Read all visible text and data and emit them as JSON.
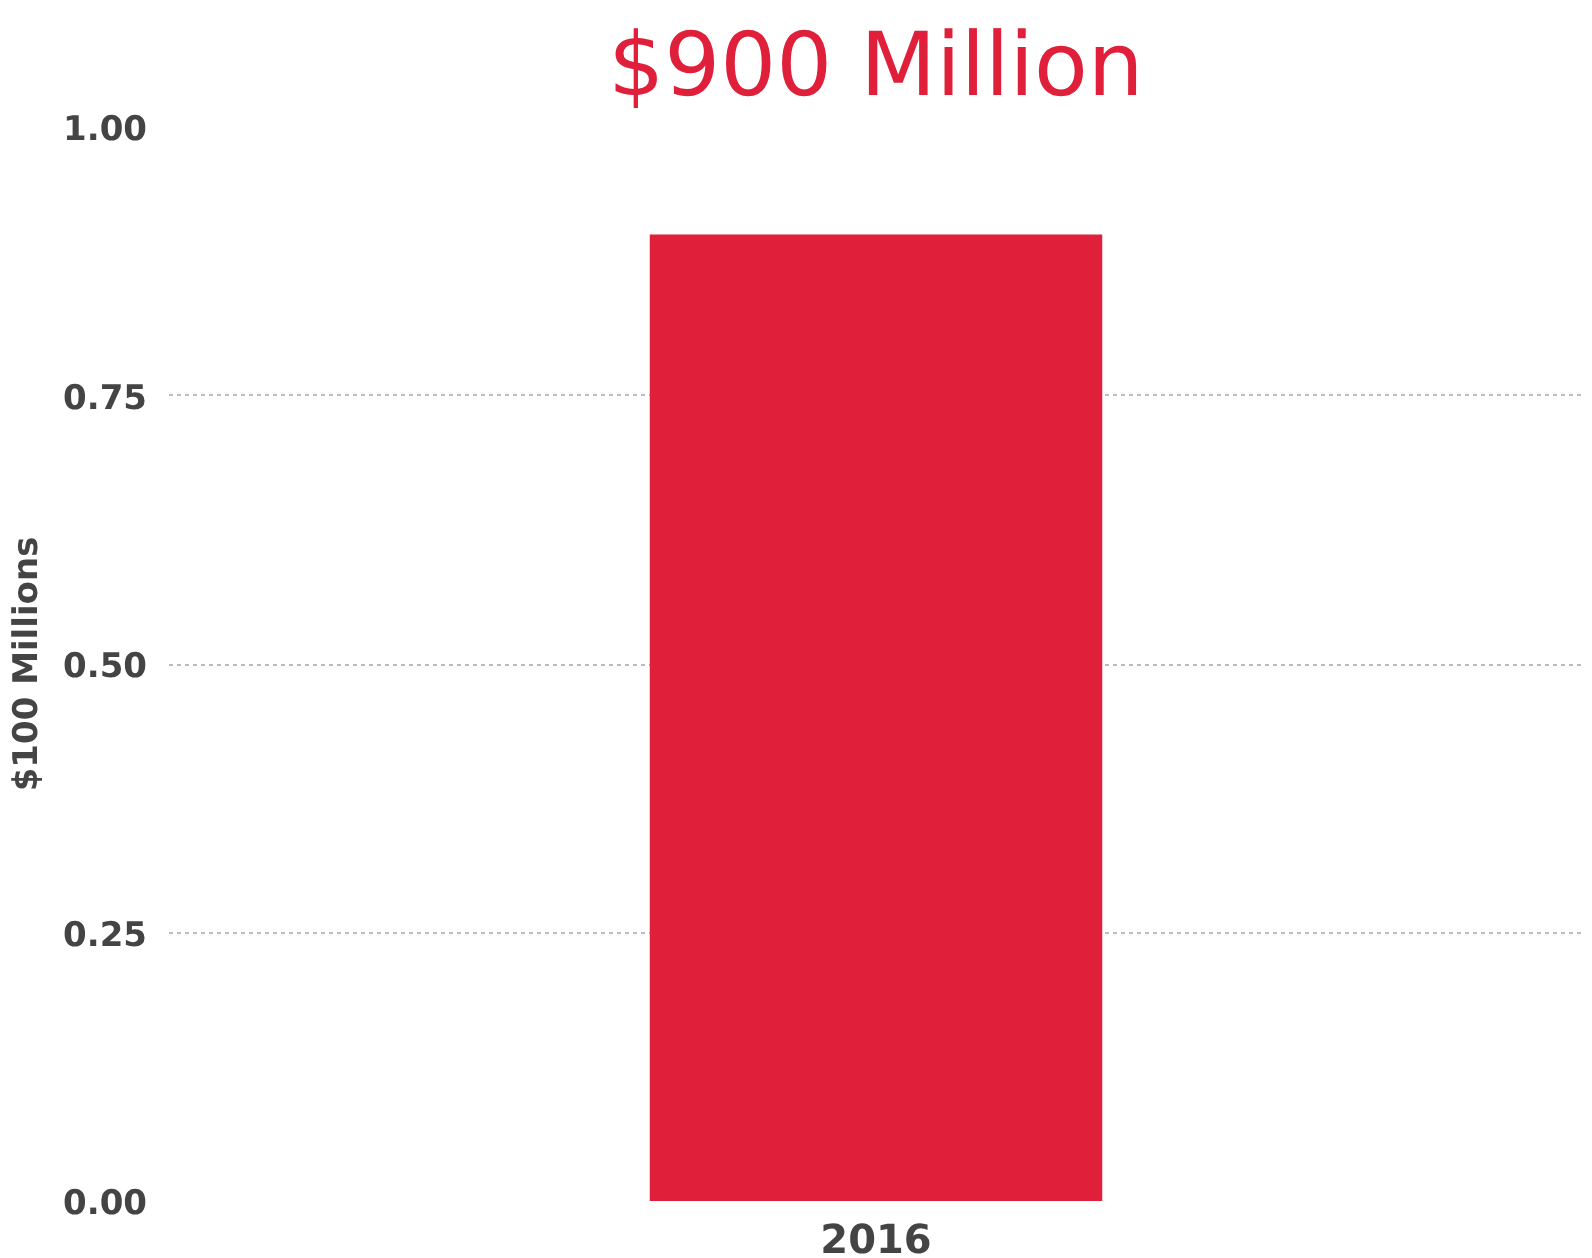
{
  "chart_data": {
    "type": "bar",
    "title": "$900 Million",
    "ylabel": "$100 Millions",
    "categories": [
      "2016"
    ],
    "values": [
      0.9
    ],
    "color": "#e0203a",
    "ylim": [
      0,
      1.0
    ],
    "yticks": [
      {
        "value": 0,
        "label": "0.00"
      },
      {
        "value": 0.25,
        "label": "0.25"
      },
      {
        "value": 0.5,
        "label": "0.50"
      },
      {
        "value": 0.75,
        "label": "0.75"
      },
      {
        "value": 1.0,
        "label": "1.00"
      }
    ],
    "grid": "y"
  }
}
